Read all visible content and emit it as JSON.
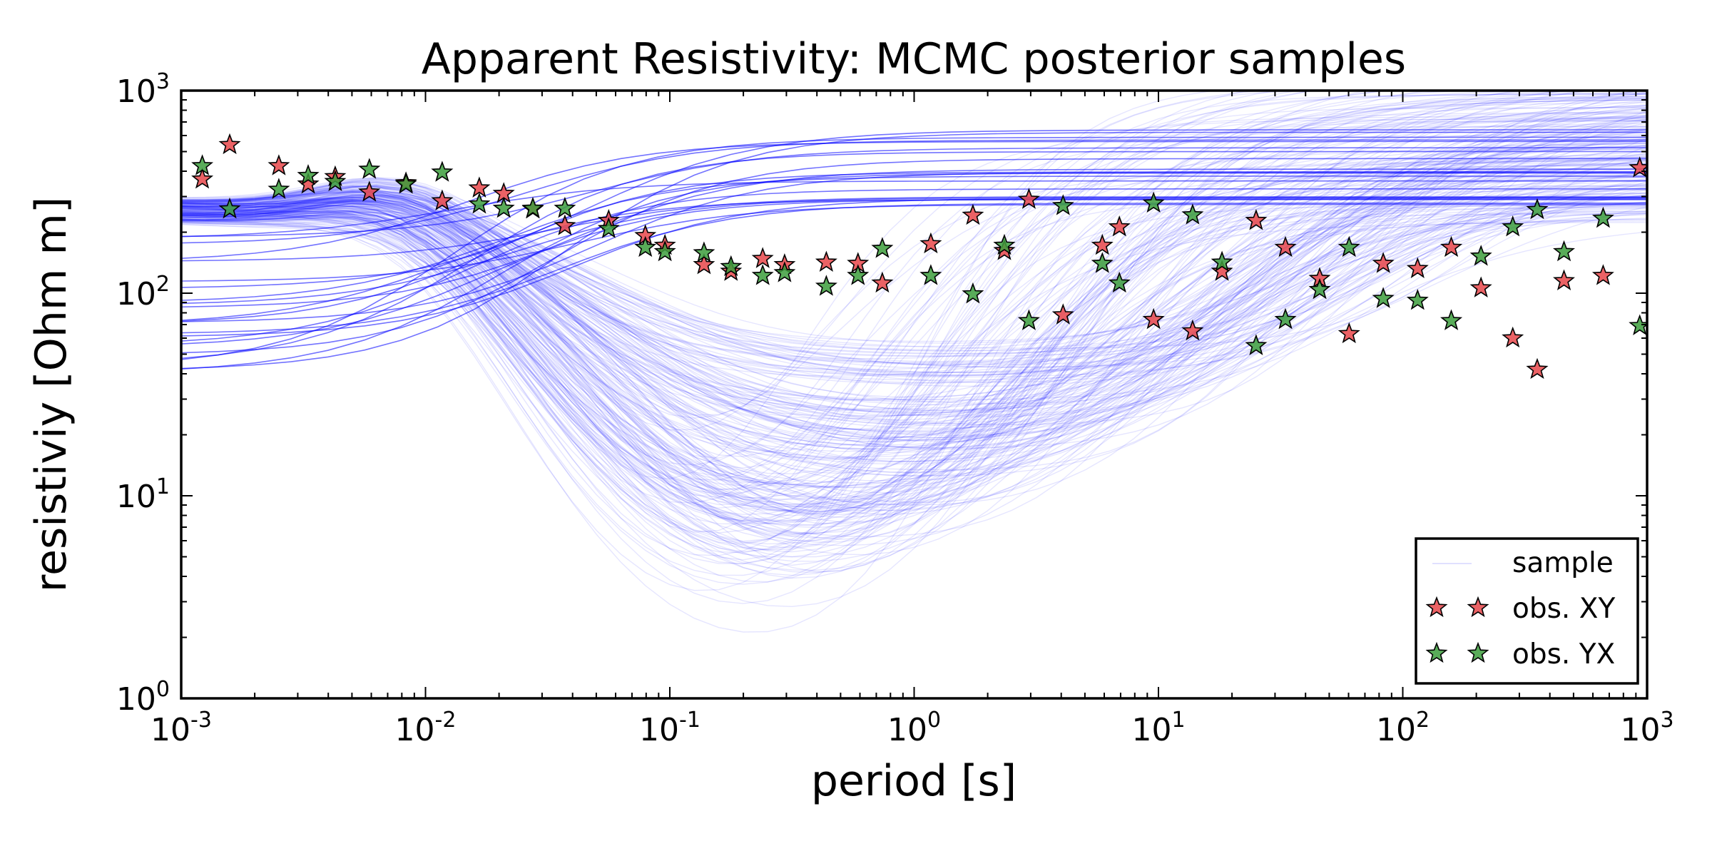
{
  "chart_data": {
    "type": "line",
    "title": "Apparent Resistivity: MCMC posterior samples",
    "xlabel": "period [s]",
    "ylabel": "resistiviy [Ohm m]",
    "xscale": "log",
    "yscale": "log",
    "xlim": [
      0.001,
      1000
    ],
    "ylim": [
      1,
      1000
    ],
    "x_tick_labels": [
      {
        "value": 0.001,
        "base": "10",
        "exp": "-3"
      },
      {
        "value": 0.01,
        "base": "10",
        "exp": "-2"
      },
      {
        "value": 0.1,
        "base": "10",
        "exp": "-1"
      },
      {
        "value": 1,
        "base": "10",
        "exp": "0"
      },
      {
        "value": 10,
        "base": "10",
        "exp": "1"
      },
      {
        "value": 100,
        "base": "10",
        "exp": "2"
      },
      {
        "value": 1000,
        "base": "10",
        "exp": "3"
      }
    ],
    "y_tick_labels": [
      {
        "value": 1,
        "base": "10",
        "exp": "0"
      },
      {
        "value": 10,
        "base": "10",
        "exp": "1"
      },
      {
        "value": 100,
        "base": "10",
        "exp": "2"
      },
      {
        "value": 1000,
        "base": "10",
        "exp": "3"
      }
    ],
    "grid": false,
    "legend_position": "lower-right",
    "legend": [
      {
        "label": "sample",
        "kind": "line",
        "color": "#0000ff"
      },
      {
        "label": "obs. XY",
        "kind": "star",
        "color": "#e8474a"
      },
      {
        "label": "obs. YX",
        "kind": "star",
        "color": "#3c9e3c"
      }
    ],
    "colors": {
      "sample": "#0000ff",
      "xy": "#e8474a",
      "yx": "#3c9e3c"
    },
    "series": [
      {
        "name": "obs. XY",
        "x": [
          0.00122,
          0.00158,
          0.00251,
          0.00331,
          0.00427,
          0.00589,
          0.00832,
          0.0117,
          0.0166,
          0.0209,
          0.0275,
          0.0372,
          0.0562,
          0.0794,
          0.0955,
          0.138,
          0.178,
          0.24,
          0.295,
          0.437,
          0.589,
          0.741,
          1.17,
          1.74,
          2.34,
          2.95,
          4.07,
          5.89,
          6.92,
          9.55,
          13.8,
          18.2,
          25.1,
          33.1,
          45.7,
          60.3,
          83.2,
          115,
          158,
          209,
          282,
          355,
          457,
          661,
          933
        ],
        "y": [
          365,
          540,
          425,
          345,
          375,
          315,
          350,
          285,
          330,
          310,
          260,
          215,
          228,
          192,
          172,
          138,
          128,
          148,
          138,
          142,
          140,
          112,
          175,
          242,
          162,
          290,
          78,
          172,
          212,
          74,
          65,
          128,
          228,
          168,
          118,
          63,
          140,
          132,
          168,
          106,
          60,
          42,
          115,
          122,
          415
        ]
      },
      {
        "name": "obs. YX",
        "x": [
          0.00122,
          0.00158,
          0.00251,
          0.00331,
          0.00427,
          0.00589,
          0.00832,
          0.0117,
          0.0166,
          0.0209,
          0.0275,
          0.0372,
          0.0562,
          0.0794,
          0.0955,
          0.138,
          0.178,
          0.24,
          0.295,
          0.437,
          0.589,
          0.741,
          1.17,
          1.74,
          2.34,
          2.95,
          4.07,
          5.89,
          6.92,
          9.55,
          13.8,
          18.2,
          25.1,
          33.1,
          45.7,
          60.3,
          83.2,
          115,
          158,
          209,
          282,
          355,
          457,
          661,
          933
        ],
        "y": [
          425,
          260,
          325,
          380,
          355,
          408,
          345,
          395,
          275,
          262,
          262,
          262,
          208,
          168,
          160,
          158,
          135,
          122,
          126,
          108,
          122,
          166,
          122,
          99,
          172,
          73,
          270,
          140,
          112,
          278,
          243,
          142,
          55,
          74,
          104,
          168,
          94,
          92,
          73,
          152,
          212,
          258,
          160,
          234,
          69
        ]
      }
    ]
  }
}
